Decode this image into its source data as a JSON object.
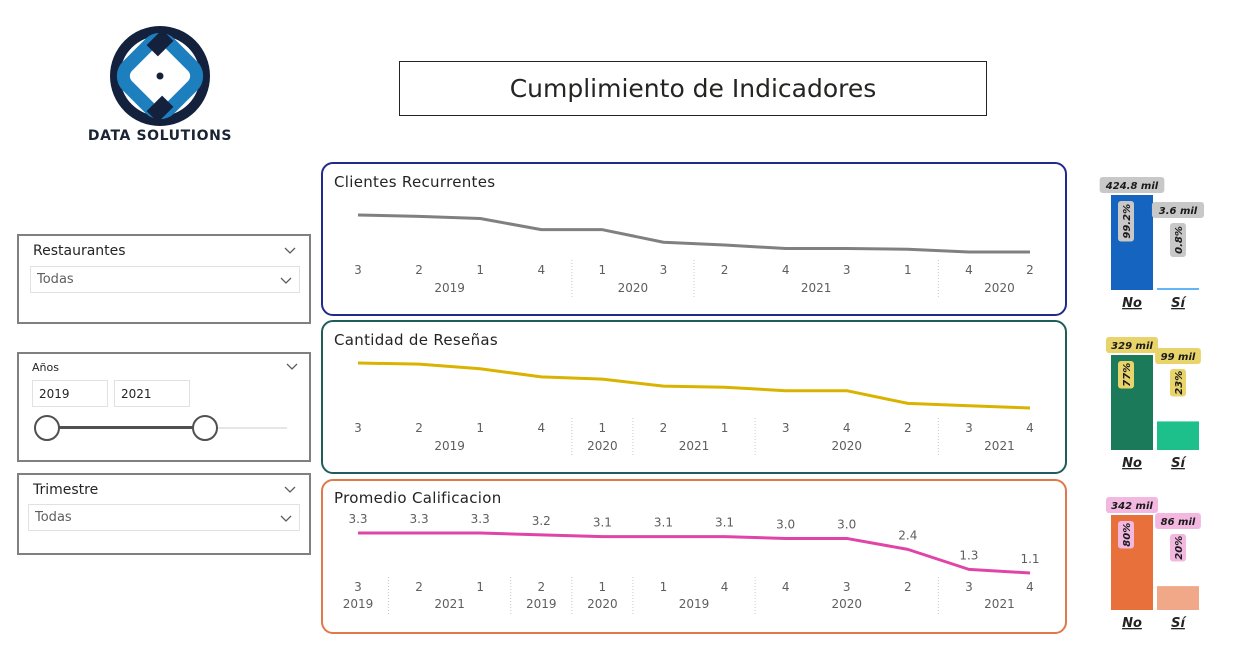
{
  "brand": {
    "name": "DATA SOLUTIONS"
  },
  "header": {
    "title": "Cumplimiento de Indicadores"
  },
  "slicers": {
    "restaurantes": {
      "label": "Restaurantes",
      "value": "Todas"
    },
    "anios": {
      "label": "Años",
      "from": "2019",
      "to": "2021",
      "range_fraction": [
        0.0,
        0.63
      ]
    },
    "trimestre": {
      "label": "Trimestre",
      "value": "Todas"
    }
  },
  "chart_data": [
    {
      "type": "line",
      "title": "Clientes Recurrentes",
      "color": "#808080",
      "quarters": [
        "3",
        "2",
        "1",
        "4",
        "1",
        "3",
        "2",
        "4",
        "3",
        "1",
        "4",
        "2"
      ],
      "years": [
        {
          "label": "2019",
          "span": [
            0,
            3
          ]
        },
        {
          "label": "2020",
          "span": [
            4,
            5
          ]
        },
        {
          "label": "2021",
          "span": [
            6,
            9
          ]
        },
        {
          "label": "2020",
          "span": [
            10,
            11
          ]
        }
      ],
      "values": [
        100,
        98,
        95,
        79,
        79,
        61,
        57,
        52,
        52,
        51,
        47,
        47
      ],
      "data_labels": false
    },
    {
      "type": "line",
      "title": "Cantidad de Reseñas",
      "color": "#d9b300",
      "quarters": [
        "3",
        "2",
        "1",
        "4",
        "1",
        "2",
        "1",
        "3",
        "4",
        "2",
        "3",
        "4"
      ],
      "years": [
        {
          "label": "2019",
          "span": [
            0,
            3
          ]
        },
        {
          "label": "2020",
          "span": [
            4,
            4
          ]
        },
        {
          "label": "2021",
          "span": [
            5,
            6
          ]
        },
        {
          "label": "2020",
          "span": [
            7,
            9
          ]
        },
        {
          "label": "2021",
          "span": [
            10,
            11
          ]
        }
      ],
      "values": [
        100,
        99,
        95,
        88,
        86,
        80,
        79,
        76,
        76,
        65,
        63,
        61
      ],
      "data_labels": false
    },
    {
      "type": "line",
      "title": "Promedio Calificacion",
      "color": "#e044a7",
      "quarters": [
        "3",
        "2",
        "1",
        "2",
        "1",
        "1",
        "4",
        "4",
        "3",
        "2",
        "3",
        "4"
      ],
      "years": [
        {
          "label": "2019",
          "span": [
            0,
            0
          ]
        },
        {
          "label": "2021",
          "span": [
            1,
            2
          ]
        },
        {
          "label": "2019",
          "span": [
            3,
            3
          ]
        },
        {
          "label": "2020",
          "span": [
            4,
            4
          ]
        },
        {
          "label": "2019",
          "span": [
            5,
            6
          ]
        },
        {
          "label": "2020",
          "span": [
            7,
            9
          ]
        },
        {
          "label": "2021",
          "span": [
            10,
            11
          ]
        }
      ],
      "values": [
        3.3,
        3.3,
        3.3,
        3.2,
        3.1,
        3.1,
        3.1,
        3.0,
        3.0,
        2.4,
        1.3,
        1.1
      ],
      "labels": [
        "3.3",
        "3.3",
        "3.3",
        "3.2",
        "3.1",
        "3.1",
        "3.1",
        "3.0",
        "3.0",
        "2.4",
        "1.3",
        "1.1"
      ],
      "data_labels": true
    },
    {
      "type": "bar",
      "categories": [
        "No",
        "Sí"
      ],
      "values": [
        424.8,
        3.6
      ],
      "value_labels": [
        "424.8 mil",
        "3.6 mil"
      ],
      "percent_labels": [
        "99.2%",
        "0.8%"
      ],
      "colors": [
        "#1565c0",
        "#64b5f6"
      ],
      "label_bg": "#c8c8c8"
    },
    {
      "type": "bar",
      "categories": [
        "No",
        "Sí"
      ],
      "values": [
        329,
        99
      ],
      "value_labels": [
        "329 mil",
        "99 mil"
      ],
      "percent_labels": [
        "77%",
        "23%"
      ],
      "colors": [
        "#1b7a5a",
        "#1dbf8a"
      ],
      "label_bg": "#e8d46a"
    },
    {
      "type": "bar",
      "categories": [
        "No",
        "Sí"
      ],
      "values": [
        342,
        86
      ],
      "value_labels": [
        "342 mil",
        "86 mil"
      ],
      "percent_labels": [
        "80%",
        "20%"
      ],
      "colors": [
        "#e8703a",
        "#f0a888"
      ],
      "label_bg": "#f2b8e0"
    }
  ],
  "cards": {
    "border_colors": [
      "#1f2a8c",
      "#1f5c5a",
      "#e0784a"
    ]
  }
}
